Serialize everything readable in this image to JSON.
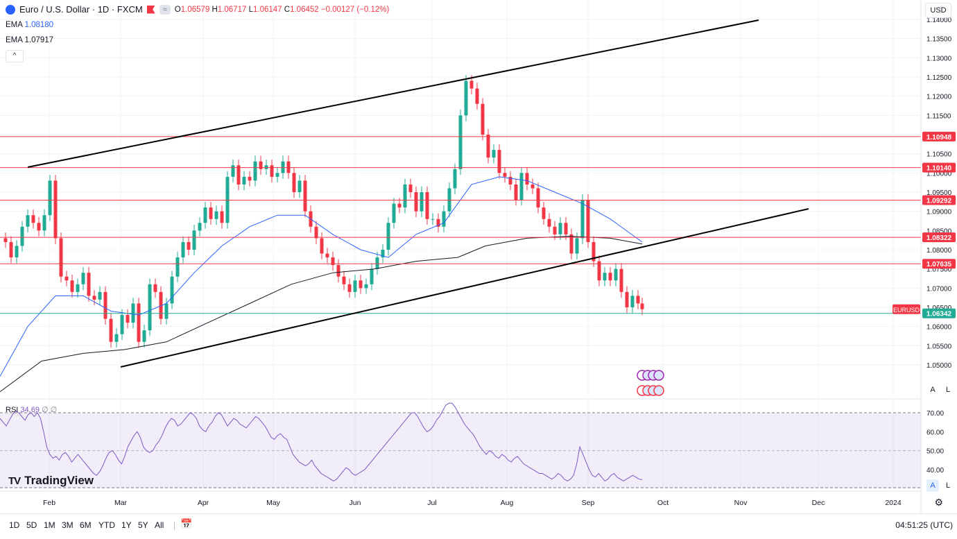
{
  "header": {
    "symbol_title": "Euro / U.S. Dollar · 1D · FXCM",
    "pill_label": "≈",
    "ohlc": {
      "o_label": "O",
      "o": "1.06579",
      "h_label": "H",
      "h": "1.06717",
      "l_label": "L",
      "l": "1.06147",
      "c_label": "C",
      "c": "1.06452",
      "chg": "−0.00127 (−0.12%)"
    },
    "currency": "USD"
  },
  "indicators": {
    "ema1": {
      "label": "EMA",
      "value": "1.08180",
      "color": "#2962ff"
    },
    "ema2": {
      "label": "EMA",
      "value": "1.07917",
      "color": "#131722"
    },
    "collapse": "^"
  },
  "price_scale": {
    "ticks": [
      "1.14000",
      "1.13500",
      "1.13000",
      "1.12500",
      "1.12000",
      "1.11500",
      "1.11000",
      "1.10500",
      "1.10000",
      "1.09500",
      "1.09000",
      "1.08500",
      "1.08000",
      "1.07500",
      "1.07000",
      "1.06500",
      "1.06000",
      "1.05500",
      "1.05000"
    ],
    "levels": [
      {
        "value": "1.10948",
        "color": "#f23645"
      },
      {
        "value": "1.10140",
        "color": "#f23645"
      },
      {
        "value": "1.09292",
        "color": "#f23645"
      },
      {
        "value": "1.08322",
        "color": "#f23645"
      },
      {
        "value": "1.07635",
        "color": "#f23645"
      },
      {
        "value": "1.06342",
        "color": "#22ab94"
      }
    ],
    "symbol_tag": "EURUSD",
    "auto_btn": "A",
    "log_btn": "L"
  },
  "time_axis": [
    "Feb",
    "Mar",
    "Apr",
    "May",
    "Jun",
    "Jul",
    "Aug",
    "Sep",
    "Oct",
    "Nov",
    "Dec",
    "2024"
  ],
  "rsi": {
    "label": "RSI",
    "value": "34.69",
    "extra1": "∅",
    "extra2": "∅",
    "ticks": [
      "70.00",
      "60.00",
      "50.00",
      "40.00"
    ],
    "color": "#7e57c2",
    "values": [
      67,
      65,
      63,
      66,
      69,
      71,
      70,
      68,
      66,
      69,
      70,
      68,
      70,
      67,
      60,
      52,
      48,
      46,
      47,
      45,
      48,
      49,
      47,
      44,
      46,
      48,
      46,
      44,
      42,
      40,
      38,
      37,
      39,
      42,
      46,
      49,
      50,
      48,
      45,
      43,
      47,
      52,
      55,
      58,
      60,
      57,
      52,
      50,
      49,
      50,
      53,
      55,
      58,
      62,
      65,
      67,
      66,
      63,
      64,
      66,
      68,
      70,
      69,
      67,
      63,
      61,
      60,
      63,
      65,
      68,
      70,
      69,
      66,
      63,
      65,
      67,
      66,
      64,
      63,
      62,
      64,
      66,
      68,
      67,
      65,
      63,
      60,
      57,
      56,
      58,
      59,
      57,
      56,
      52,
      48,
      46,
      44,
      43,
      42,
      43,
      45,
      42,
      40,
      38,
      37,
      36,
      35,
      34,
      35,
      37,
      39,
      41,
      40,
      38,
      37,
      38,
      39,
      40,
      42,
      44,
      46,
      48,
      50,
      52,
      54,
      56,
      58,
      60,
      62,
      64,
      66,
      68,
      70,
      70,
      68,
      65,
      62,
      60,
      61,
      63,
      66,
      68,
      71,
      74,
      75,
      75,
      73,
      70,
      67,
      64,
      62,
      60,
      58,
      55,
      52,
      50,
      48,
      50,
      49,
      47,
      46,
      48,
      47,
      45,
      44,
      46,
      47,
      45,
      43,
      42,
      41,
      40,
      39,
      38,
      38,
      37,
      36,
      35,
      36,
      38,
      37,
      35,
      34,
      35,
      37,
      43,
      52,
      48,
      44,
      40,
      37,
      36,
      38,
      36,
      34,
      35,
      37,
      38,
      36,
      35,
      34,
      35,
      36,
      37,
      36,
      35,
      34.69
    ]
  },
  "branding": {
    "logo": "TV",
    "name": "TradingView"
  },
  "bottom": {
    "ranges": [
      "1D",
      "5D",
      "1M",
      "3M",
      "6M",
      "YTD",
      "1Y",
      "5Y",
      "All"
    ],
    "clock": "04:51:25 (UTC)"
  }
}
